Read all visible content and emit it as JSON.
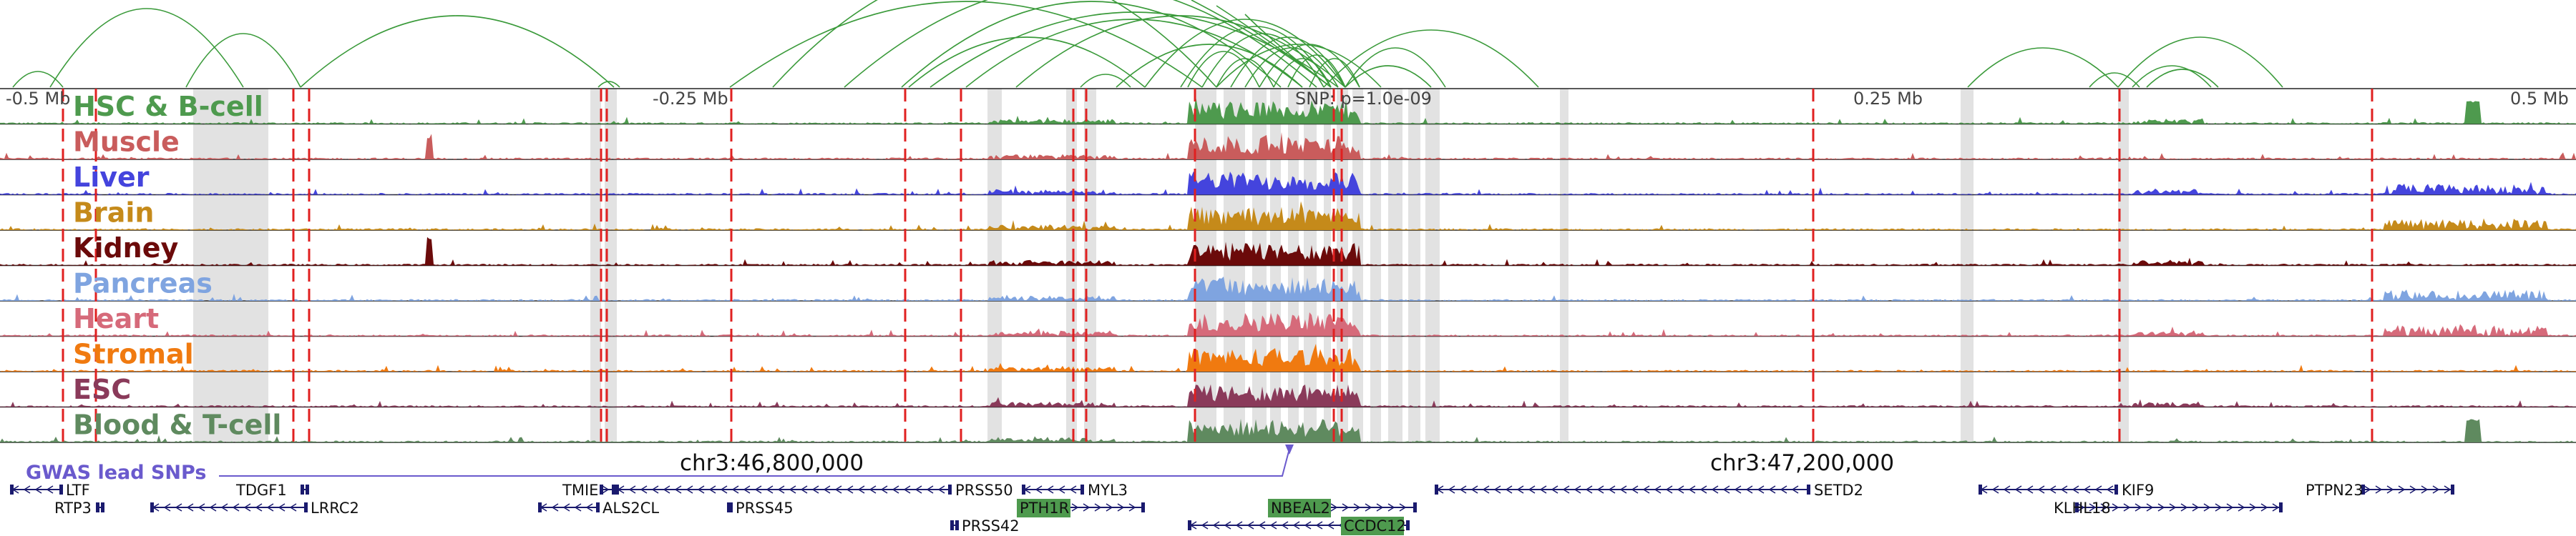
{
  "ruler": {
    "labels": [
      "-0.5 Mb",
      "-0.25 Mb",
      "SNP: p=1.0e-09",
      "0.25 Mb",
      "0.5 Mb"
    ]
  },
  "tracks": [
    {
      "label": "HSC & B-cell",
      "color": "#4e9a4e"
    },
    {
      "label": "Muscle",
      "color": "#c95c5c"
    },
    {
      "label": "Liver",
      "color": "#4444dd"
    },
    {
      "label": "Brain",
      "color": "#c58a1a"
    },
    {
      "label": "Kidney",
      "color": "#6b0a0a"
    },
    {
      "label": "Pancreas",
      "color": "#7fa4e0"
    },
    {
      "label": "Heart",
      "color": "#d66a7a"
    },
    {
      "label": "Stromal",
      "color": "#f07a10"
    },
    {
      "label": "ESC",
      "color": "#8a3a5a"
    },
    {
      "label": "Blood & T-cell",
      "color": "#5f8a5f"
    }
  ],
  "chromosome": {
    "labels": [
      "chr3:46,800,000",
      "chr3:47,200,000"
    ]
  },
  "gwas": {
    "label": "GWAS lead SNPs",
    "color": "#6a5acd"
  },
  "genes": [
    {
      "name": "LTF",
      "highlight": false
    },
    {
      "name": "RTP3",
      "highlight": false
    },
    {
      "name": "TDGF1",
      "highlight": false
    },
    {
      "name": "LRRC2",
      "highlight": false
    },
    {
      "name": "TMIE",
      "highlight": false
    },
    {
      "name": "ALS2CL",
      "highlight": false
    },
    {
      "name": "PRSS50",
      "highlight": false
    },
    {
      "name": "PRSS45",
      "highlight": false
    },
    {
      "name": "PRSS42",
      "highlight": false
    },
    {
      "name": "MYL3",
      "highlight": false
    },
    {
      "name": "PTH1R",
      "highlight": true
    },
    {
      "name": "NBEAL2",
      "highlight": true
    },
    {
      "name": "CCDC12",
      "highlight": true
    },
    {
      "name": "SETD2",
      "highlight": false
    },
    {
      "name": "KIF9",
      "highlight": false
    },
    {
      "name": "KLHL18",
      "highlight": false
    },
    {
      "name": "PTPN23",
      "highlight": false
    }
  ],
  "colors": {
    "arc": "#3a9a3a",
    "red_line": "#e02020",
    "gray_band": "#d8d8d8",
    "gene": "#1a1a6e",
    "gene_highlight_bg": "#4e9a4e"
  }
}
